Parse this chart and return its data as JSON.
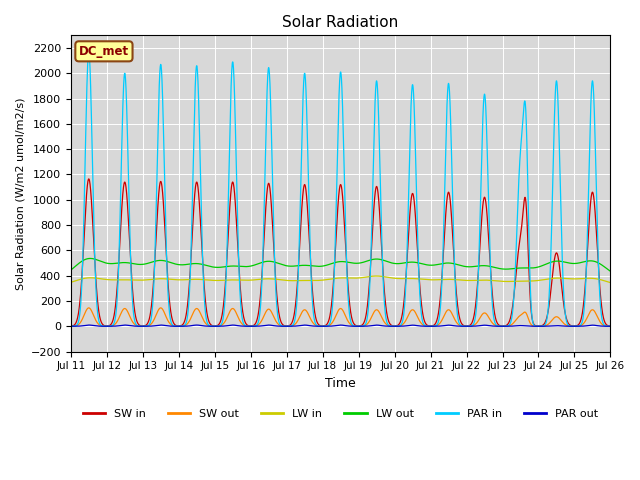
{
  "title": "Solar Radiation",
  "xlabel": "Time",
  "ylabel": "Solar Radiation (W/m2 umol/m2/s)",
  "ylim": [
    -200,
    2300
  ],
  "yticks": [
    -200,
    0,
    200,
    400,
    600,
    800,
    1000,
    1200,
    1400,
    1600,
    1800,
    2000,
    2200
  ],
  "label_text": "DC_met",
  "legend_entries": [
    "SW in",
    "SW out",
    "LW in",
    "LW out",
    "PAR in",
    "PAR out"
  ],
  "line_colors": [
    "#cc0000",
    "#ff8800",
    "#cccc00",
    "#00cc00",
    "#00ccff",
    "#0000cc"
  ],
  "background_color": "#d8d8d8",
  "fig_background": "#ffffff",
  "n_days": 15,
  "points_per_day": 288
}
